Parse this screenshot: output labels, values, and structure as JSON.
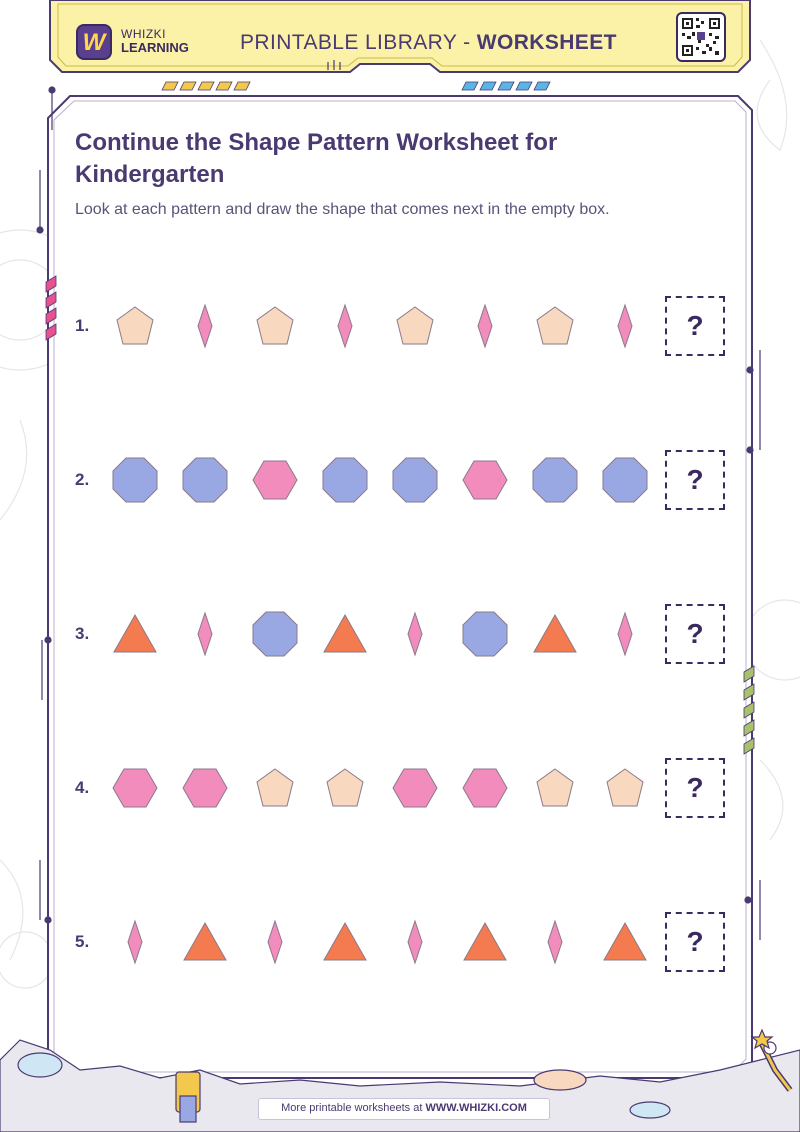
{
  "header": {
    "logo_line1": "WHIZKI",
    "logo_line2": "LEARNING",
    "logo_letter": "W",
    "title_regular": "PRINTABLE LIBRARY - ",
    "title_bold": "WORKSHEET"
  },
  "worksheet": {
    "title": "Continue the Shape Pattern Worksheet for Kindergarten",
    "instructions": "Look at each pattern and draw the shape that comes next in the empty box.",
    "answer_mark": "?",
    "rows": [
      {
        "number": "1.",
        "shapes": [
          "pentagon-peach",
          "diamond-pink",
          "pentagon-peach",
          "diamond-pink",
          "pentagon-peach",
          "diamond-pink",
          "pentagon-peach",
          "diamond-pink"
        ]
      },
      {
        "number": "2.",
        "shapes": [
          "octagon-blue",
          "octagon-blue",
          "hexagon-pink",
          "octagon-blue",
          "octagon-blue",
          "hexagon-pink",
          "octagon-blue",
          "octagon-blue"
        ]
      },
      {
        "number": "3.",
        "shapes": [
          "triangle-orange",
          "diamond-pink",
          "octagon-blue",
          "triangle-orange",
          "diamond-pink",
          "octagon-blue",
          "triangle-orange",
          "diamond-pink"
        ]
      },
      {
        "number": "4.",
        "shapes": [
          "hexagon-pink",
          "hexagon-pink",
          "pentagon-peach",
          "pentagon-peach",
          "hexagon-pink",
          "hexagon-pink",
          "pentagon-peach",
          "pentagon-peach"
        ]
      },
      {
        "number": "5.",
        "shapes": [
          "diamond-pink",
          "triangle-orange",
          "diamond-pink",
          "triangle-orange",
          "diamond-pink",
          "triangle-orange",
          "diamond-pink",
          "triangle-orange"
        ]
      }
    ]
  },
  "footer": {
    "text": "More printable worksheets at ",
    "site": "WWW.WHIZKI.COM"
  },
  "colors": {
    "peach": "#f8d9c0",
    "pink": "#f28cbd",
    "blue": "#99a8e3",
    "orange": "#f47a50",
    "header_yellow": "#fbf2a8",
    "frame_purple": "#4a3a72"
  }
}
